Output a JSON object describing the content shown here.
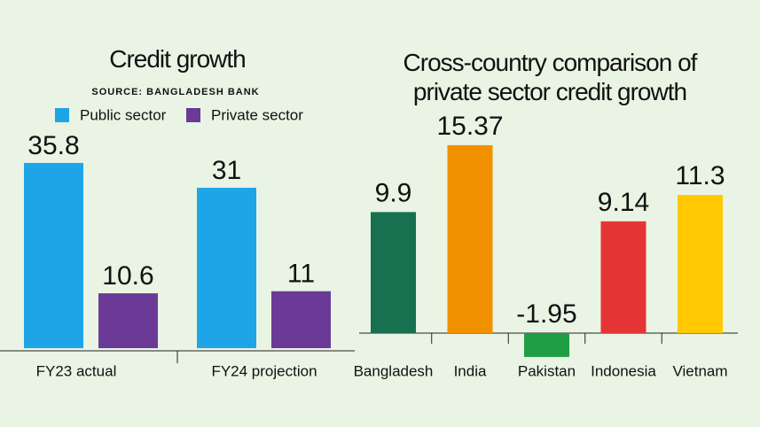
{
  "chart_data": [
    {
      "type": "bar",
      "title": "Credit growth",
      "subtitle": "SOURCE: BANGLADESH BANK",
      "categories": [
        "FY23 actual",
        "FY24 projection"
      ],
      "series": [
        {
          "name": "Public sector",
          "color": "#1ea5e8",
          "values": [
            35.8,
            31
          ]
        },
        {
          "name": "Private sector",
          "color": "#6b3a97",
          "values": [
            10.6,
            11
          ]
        }
      ]
    },
    {
      "type": "bar",
      "title": "Cross-country comparison of private sector credit growth",
      "categories": [
        "Bangladesh",
        "India",
        "Pakistan",
        "Indonesia",
        "Vietnam"
      ],
      "values": [
        9.9,
        15.37,
        -1.95,
        9.14,
        11.3
      ],
      "colors": [
        "#17704f",
        "#f29100",
        "#1f9e45",
        "#e53535",
        "#ffc800"
      ]
    }
  ]
}
